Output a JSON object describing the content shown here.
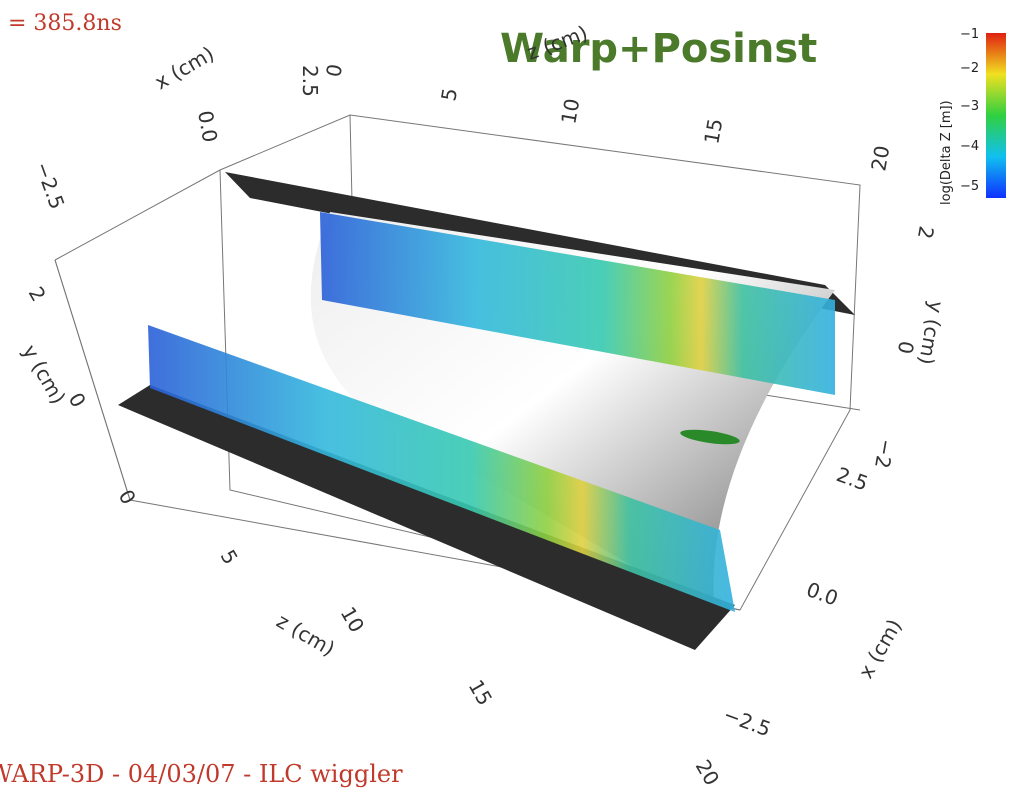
{
  "header": {
    "time": "= 385.8ns",
    "title": "Warp+Posinst"
  },
  "colorbar": {
    "label": "log(Delta Z [m])",
    "ticks": [
      "−1",
      "−2",
      "−3",
      "−4",
      "−5"
    ]
  },
  "axes": {
    "top_x": {
      "label": "x (cm)",
      "ticks": [
        "2.5",
        "0.0",
        "−2.5"
      ]
    },
    "top_z": {
      "label": "z (cm)",
      "ticks": [
        "0",
        "5",
        "10",
        "15",
        "20"
      ]
    },
    "left_y": {
      "label": "y (cm)",
      "ticks": [
        "2",
        "0"
      ]
    },
    "right_y": {
      "label": "y (cm)",
      "ticks": [
        "2",
        "0",
        "−2"
      ]
    },
    "bottom_z": {
      "label": "z (cm)",
      "ticks": [
        "0",
        "5",
        "10",
        "15",
        "20"
      ]
    },
    "right_x": {
      "label": "x (cm)",
      "ticks": [
        "2.5",
        "0.0",
        "−2.5"
      ]
    }
  },
  "footer": "WARP-3D - 04/03/07 - ILC wiggler"
}
